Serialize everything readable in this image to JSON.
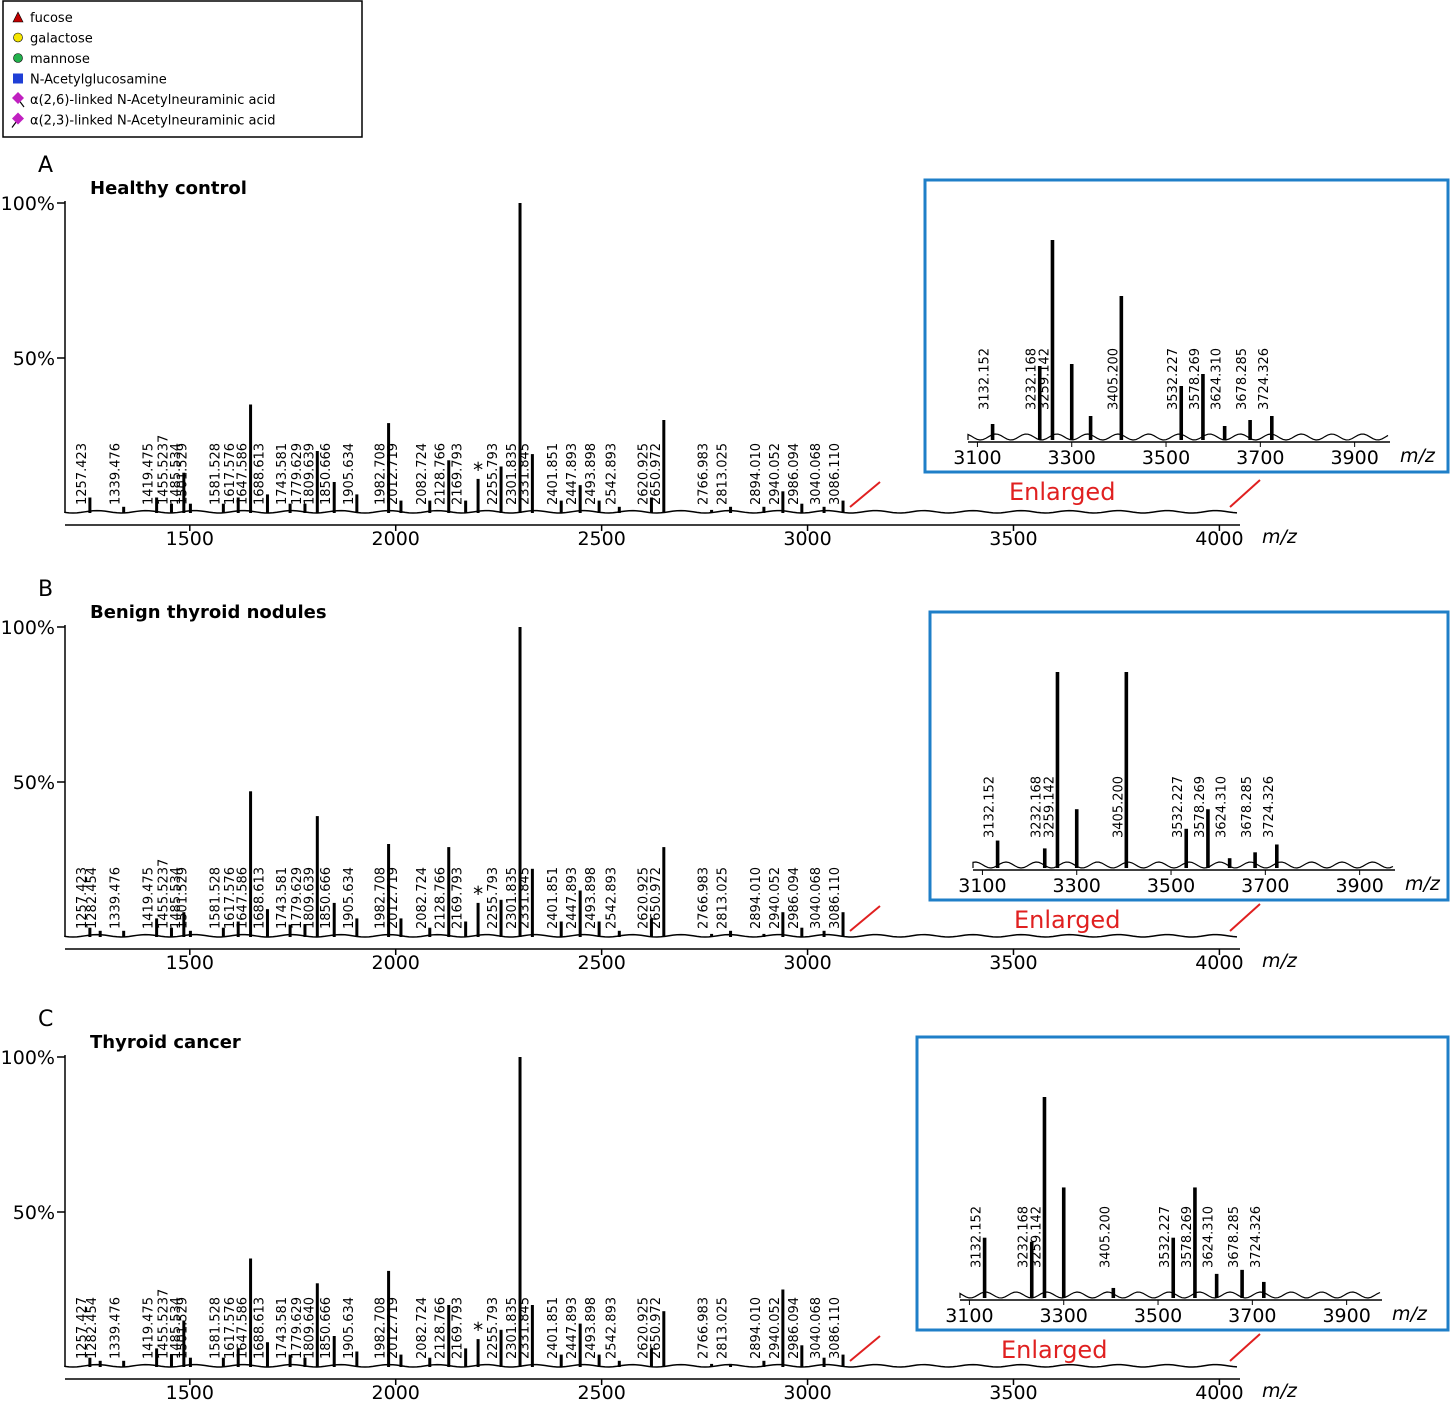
{
  "legend": [
    {
      "label": "fucose",
      "shape": "triangle",
      "color": "#c00000"
    },
    {
      "label": "galactose",
      "shape": "circle",
      "color": "#f5e500"
    },
    {
      "label": "mannose",
      "shape": "circle",
      "color": "#22b14c"
    },
    {
      "label": "N-Acetylglucosamine",
      "shape": "square",
      "color": "#1f3fd6"
    },
    {
      "label": "α(2,6)-linked N-Acetylneuraminic acid",
      "shape": "diamond-stem",
      "color": "#c020c0"
    },
    {
      "label": "α(2,3)-linked N-Acetylneuraminic acid",
      "shape": "diamond-stem-up",
      "color": "#c020c0"
    }
  ],
  "chart_data": [
    {
      "type": "spectrum",
      "panel": "A",
      "title": "Healthy control",
      "color": "#000000",
      "x": [
        1257.423,
        1339.476,
        1419.475,
        1455.5237,
        1485.534,
        1501.529,
        1581.528,
        1617.576,
        1647.586,
        1688.613,
        1743.581,
        1779.629,
        1809.639,
        1850.666,
        1905.634,
        1982.708,
        2012.719,
        2082.724,
        2128.766,
        2169.793,
        2200,
        2255.793,
        2301.835,
        2331.845,
        2401.851,
        2447.893,
        2493.898,
        2542.893,
        2620.925,
        2650.972,
        2766.983,
        2813.025,
        2894.01,
        2940.052,
        2986.094,
        3040.068,
        3086.11
      ],
      "values": [
        5,
        2,
        5,
        3,
        13,
        3,
        3,
        5,
        35,
        6,
        3,
        3,
        20,
        10,
        6,
        29,
        4,
        4,
        17,
        4,
        11,
        15,
        100,
        19,
        4,
        9,
        4,
        2,
        5,
        30,
        1,
        2,
        2,
        7,
        3,
        2,
        4
      ],
      "labels": [
        "1257.423",
        "1339.476",
        "1419.475",
        "1455.5237",
        "1485.534",
        "1501.529",
        "1581.528",
        "1617.576",
        "1647.586",
        "1688.613",
        "1743.581",
        "1779.629",
        "1809.639",
        "1850.666",
        "1905.634",
        "1982.708",
        "2012.719",
        "2082.724",
        "2128.766",
        "2169.793",
        "*",
        "2255.793",
        "2301.835",
        "2331.845",
        "2401.851",
        "2447.893",
        "2493.898",
        "2542.893",
        "2620.925",
        "2650.972",
        "2766.983",
        "2813.025",
        "2894.010",
        "2940.052",
        "2986.094",
        "3040.068",
        "3086.110"
      ],
      "xlim": [
        1197,
        4050
      ],
      "xticks": [
        1500,
        2000,
        2500,
        3000,
        3500,
        4000
      ],
      "x_label": "m/z",
      "ylim": [
        0,
        100
      ],
      "yticks": [
        {
          "value": 50,
          "label": "50%"
        },
        {
          "value": 100,
          "label": "100%"
        }
      ],
      "inset": {
        "border_color": "#1f7fc8",
        "annotation": "Enlarged",
        "x_label": "m/z",
        "xlim": [
          3080,
          3975
        ],
        "xticks": [
          3100,
          3300,
          3500,
          3700,
          3900
        ],
        "x": [
          3132.152,
          3232.168,
          3259.142,
          3300,
          3340,
          3405.2,
          3532.227,
          3578.269,
          3624.31,
          3678.285,
          3724.326
        ],
        "values": [
          8,
          37,
          100,
          38,
          12,
          72,
          27,
          33,
          7,
          10,
          12
        ],
        "labels": [
          "3132.152",
          "3232.168",
          "3259.142",
          null,
          null,
          "3405.200",
          "3532.227",
          "3578.269",
          "3624.310",
          "3678.285",
          "3724.326"
        ]
      }
    },
    {
      "type": "spectrum",
      "panel": "B",
      "title": "Benign thyroid nodules",
      "color": "#000000",
      "x": [
        1257.423,
        1282.454,
        1339.476,
        1419.475,
        1455.5237,
        1485.534,
        1501.529,
        1581.528,
        1617.576,
        1647.586,
        1688.613,
        1743.581,
        1779.629,
        1809.639,
        1850.666,
        1905.634,
        1982.708,
        2012.719,
        2082.724,
        2128.766,
        2169.793,
        2200,
        2255.793,
        2301.835,
        2331.845,
        2401.851,
        2447.893,
        2493.898,
        2542.893,
        2620.925,
        2650.972,
        2766.983,
        2813.025,
        2894.01,
        2940.052,
        2986.094,
        3040.068,
        3086.11
      ],
      "values": [
        3,
        2,
        2,
        6,
        3,
        8,
        2,
        3,
        5,
        47,
        9,
        4,
        4,
        39,
        11,
        6,
        30,
        6,
        3,
        29,
        5,
        11,
        12,
        100,
        22,
        5,
        15,
        5,
        2,
        6,
        29,
        1,
        2,
        1,
        8,
        3,
        2,
        8
      ],
      "labels": [
        "1257.423",
        "1282.454",
        "1339.476",
        "1419.475",
        "1455.5237",
        "1485.534",
        "1501.529",
        "1581.528",
        "1617.576",
        "1647.586",
        "1688.613",
        "1743.581",
        "1779.629",
        "1809.639",
        "1850.666",
        "1905.634",
        "1982.708",
        "2012.719",
        "2082.724",
        "2128.766",
        "2169.793",
        "*",
        "2255.793",
        "2301.835",
        "2331.845",
        "2401.851",
        "2447.893",
        "2493.898",
        "2542.893",
        "2620.925",
        "2650.972",
        "2766.983",
        "2813.025",
        "2894.010",
        "2940.052",
        "2986.094",
        "3040.068",
        "3086.110"
      ],
      "xlim": [
        1197,
        4050
      ],
      "xticks": [
        1500,
        2000,
        2500,
        3000,
        3500,
        4000
      ],
      "x_label": "m/z",
      "ylim": [
        0,
        100
      ],
      "yticks": [
        {
          "value": 50,
          "label": "50%"
        },
        {
          "value": 100,
          "label": "100%"
        }
      ],
      "inset": {
        "border_color": "#1f7fc8",
        "annotation": "Enlarged",
        "x_label": "m/z",
        "xlim": [
          3080,
          3975
        ],
        "xticks": [
          3100,
          3300,
          3500,
          3700,
          3900
        ],
        "x": [
          3132.152,
          3232.168,
          3259.142,
          3300,
          3405.2,
          3532.227,
          3578.269,
          3624.31,
          3678.285,
          3724.326
        ],
        "values": [
          14,
          10,
          100,
          30,
          100,
          20,
          30,
          5,
          8,
          12
        ],
        "labels": [
          "3132.152",
          "3232.168",
          "3259.142",
          null,
          "3405.200",
          "3532.227",
          "3578.269",
          "3624.310",
          "3678.285",
          "3724.326"
        ]
      }
    },
    {
      "type": "spectrum",
      "panel": "C",
      "title": "Thyroid cancer",
      "color": "#000000",
      "x": [
        1257.427,
        1282.454,
        1339.476,
        1419.475,
        1455.5237,
        1485.534,
        1501.529,
        1581.528,
        1617.576,
        1647.586,
        1688.613,
        1743.581,
        1779.629,
        1809.64,
        1850.666,
        1905.634,
        1982.708,
        2012.719,
        2082.724,
        2128.766,
        2169.793,
        2200,
        2255.793,
        2301.835,
        2331.845,
        2401.851,
        2447.893,
        2493.898,
        2542.893,
        2620.925,
        2650.972,
        2766.983,
        2813.025,
        2894.01,
        2940.052,
        2986.094,
        3040.068,
        3086.11
      ],
      "values": [
        3,
        2,
        2,
        6,
        4,
        15,
        3,
        3,
        6,
        35,
        8,
        4,
        3,
        27,
        10,
        5,
        31,
        4,
        3,
        20,
        6,
        9,
        12,
        100,
        20,
        4,
        14,
        4,
        2,
        6,
        18,
        1,
        1,
        2,
        25,
        7,
        3,
        4
      ],
      "labels": [
        "1257.427",
        "1282.454",
        "1339.476",
        "1419.475",
        "1455.5237",
        "1485.534",
        "1501.529",
        "1581.528",
        "1617.576",
        "1647.586",
        "1688.613",
        "1743.581",
        "1779.629",
        "1809.640",
        "1850.666",
        "1905.634",
        "1982.708",
        "2012.719",
        "2082.724",
        "2128.766",
        "2169.793",
        "*",
        "2255.793",
        "2301.835",
        "2331.845",
        "2401.851",
        "2447.893",
        "2493.898",
        "2542.893",
        "2620.925",
        "2650.972",
        "2766.983",
        "2813.025",
        "2894.010",
        "2940.052",
        "2986.094",
        "3040.068",
        "3086.110"
      ],
      "xlim": [
        1197,
        4050
      ],
      "xticks": [
        1500,
        2000,
        2500,
        3000,
        3500,
        4000
      ],
      "x_label": "m/z",
      "ylim": [
        0,
        100
      ],
      "yticks": [
        {
          "value": 50,
          "label": "50%"
        },
        {
          "value": 100,
          "label": "100%"
        }
      ],
      "inset": {
        "border_color": "#1f7fc8",
        "annotation": "Enlarged",
        "x_label": "m/z",
        "xlim": [
          3080,
          3975
        ],
        "xticks": [
          3100,
          3300,
          3500,
          3700,
          3900
        ],
        "x": [
          3132.152,
          3232.168,
          3259.142,
          3300,
          3405.2,
          3532.227,
          3578.269,
          3624.31,
          3678.285,
          3724.326
        ],
        "values": [
          30,
          28,
          100,
          55,
          5,
          30,
          55,
          12,
          14,
          8
        ],
        "labels": [
          "3132.152",
          "3232.168",
          "3259.142",
          null,
          "3405.200",
          "3532.227",
          "3578.269",
          "3624.310",
          "3678.285",
          "3724.326"
        ]
      }
    }
  ]
}
